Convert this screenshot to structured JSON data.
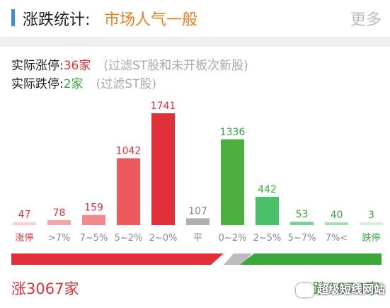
{
  "header": {
    "title": "涨跌统计:",
    "sentiment": "市场人气一般",
    "more": "更多"
  },
  "summary": {
    "limit_up_label": "实际涨停:",
    "limit_up_value": "36家",
    "limit_up_note": "(过滤ST股和未开板次新股)",
    "limit_down_label": "实际跌停:",
    "limit_down_value": "2家",
    "limit_down_note": "(过滤ST股)"
  },
  "chart_data": {
    "type": "bar",
    "categories": [
      "涨停",
      ">7%",
      "7~5%",
      "5~2%",
      "2~0%",
      "平",
      "0~2%",
      "2~5%",
      "5~7%",
      "7%<",
      "跌停"
    ],
    "values": [
      47,
      78,
      159,
      1042,
      1741,
      107,
      1336,
      442,
      53,
      40,
      3
    ],
    "colors": [
      "#f8cfd2",
      "#f5a6a9",
      "#f08a8d",
      "#ec5a5e",
      "#e0313a",
      "#b0b0b0",
      "#4caf3f",
      "#4cc06a",
      "#79d28f",
      "#a4dfb2",
      "#d4efda"
    ],
    "label_colors": [
      "#e0313a",
      "#e0313a",
      "#e0313a",
      "#e0313a",
      "#e0313a",
      "#888888",
      "#3aa83a",
      "#3aa83a",
      "#3aa83a",
      "#3aa83a",
      "#3aa83a"
    ],
    "category_colors": [
      "#e0313a",
      "#888888",
      "#888888",
      "#888888",
      "#888888",
      "#888888",
      "#888888",
      "#888888",
      "#888888",
      "#888888",
      "#3aa83a"
    ],
    "ylim": [
      0,
      1741
    ]
  },
  "totals": {
    "rise": "涨3067家",
    "fall": "跌1874家"
  },
  "watermark": "超级短线网站"
}
